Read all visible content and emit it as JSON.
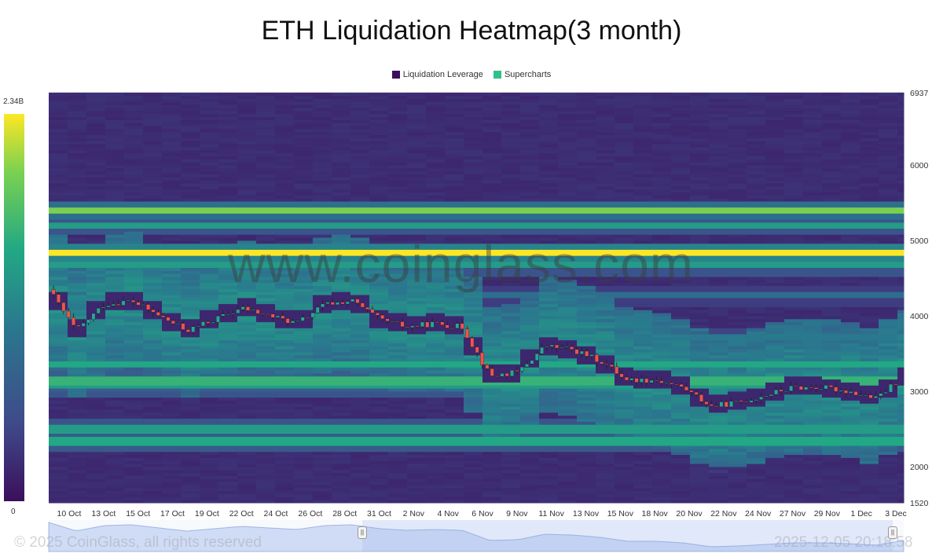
{
  "title": "ETH Liquidation Heatmap(3 month)",
  "legend": {
    "items": [
      {
        "label": "Liquidation Leverage",
        "color": "#3b0f5c"
      },
      {
        "label": "Supercharts",
        "color": "#2ec28a"
      }
    ]
  },
  "colorbar": {
    "max_label": "2.34B",
    "min_label": "0"
  },
  "watermark": "www.coinglass.com",
  "footer": {
    "copyright": "© 2025 CoinGlass, all rights reserved",
    "timestamp": "2025-12-05 20:18:58"
  },
  "chart_data": {
    "type": "heatmap",
    "title": "ETH Liquidation Heatmap(3 month)",
    "y_axis": {
      "side": "right",
      "min": 1520,
      "max": 6937,
      "tick_labels": [
        "6937",
        "6000",
        "5000",
        "4000",
        "3000",
        "2000",
        "1520"
      ]
    },
    "x_axis": {
      "tick_labels": [
        "10 Oct",
        "13 Oct",
        "15 Oct",
        "17 Oct",
        "19 Oct",
        "22 Oct",
        "24 Oct",
        "26 Oct",
        "28 Oct",
        "31 Oct",
        "2 Nov",
        "4 Nov",
        "6 Nov",
        "9 Nov",
        "11 Nov",
        "13 Nov",
        "15 Nov",
        "18 Nov",
        "20 Nov",
        "22 Nov",
        "24 Nov",
        "27 Nov",
        "29 Nov",
        "1 Dec",
        "3 Dec"
      ]
    },
    "price_series": {
      "name": "Supercharts",
      "approx_close": [
        4350,
        3800,
        4150,
        4200,
        4000,
        3800,
        3950,
        4100,
        4000,
        3900,
        4150,
        4200,
        3950,
        3850,
        3900,
        3850,
        3200,
        3250,
        3600,
        3550,
        3400,
        3150,
        3150,
        3050,
        2800,
        2850,
        2950,
        3050,
        3050,
        3000,
        2900,
        3200
      ]
    },
    "heat_levels": [
      {
        "price": 4810,
        "intensity": 1.0
      },
      {
        "price": 5380,
        "intensity": 0.8
      },
      {
        "price": 5180,
        "intensity": 0.55
      },
      {
        "price": 4650,
        "intensity": 0.55
      },
      {
        "price": 3350,
        "intensity": 0.6
      },
      {
        "price": 3120,
        "intensity": 0.65
      },
      {
        "price": 3050,
        "intensity": 0.55
      },
      {
        "price": 2480,
        "intensity": 0.55
      },
      {
        "price": 2320,
        "intensity": 0.6
      },
      {
        "price": 3700,
        "intensity": 0.4
      },
      {
        "price": 4250,
        "intensity": 0.35
      }
    ],
    "colorscale": [
      "#3b0f5c",
      "#3f4a8a",
      "#2a788e",
      "#22a884",
      "#7ad151",
      "#fde725"
    ],
    "grid": false,
    "legend_position": "top-center"
  }
}
